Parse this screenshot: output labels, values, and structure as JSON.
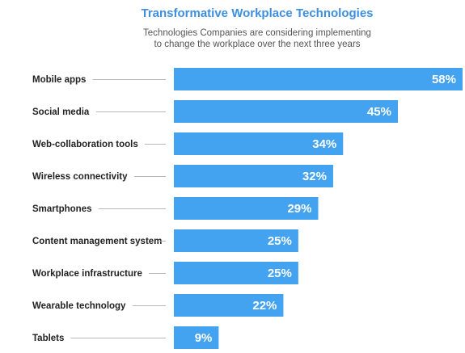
{
  "colors": {
    "bar": "#44a3f1",
    "title": "#3e8fe0",
    "value_text": "#ffffff",
    "label_text": "#222222",
    "leader": "#b8b8b8"
  },
  "chart_data": {
    "type": "bar",
    "orientation": "horizontal",
    "title": "Transformative Workplace Technologies",
    "subtitle": [
      "Technologies Companies are considering implementing",
      "to change the workplace over the next three years"
    ],
    "categories": [
      "Mobile apps",
      "Social media",
      "Web-collaboration tools",
      "Wireless connectivity",
      "Smartphones",
      "Content management system",
      "Workplace infrastructure",
      "Wearable technology",
      "Tablets"
    ],
    "values": [
      58,
      45,
      34,
      32,
      29,
      25,
      25,
      22,
      9
    ],
    "value_labels": [
      "58%",
      "45%",
      "34%",
      "32%",
      "29%",
      "25%",
      "25%",
      "22%",
      "9%"
    ],
    "unit": "%",
    "xlim": [
      0,
      58
    ],
    "grid": false,
    "legend": "none"
  }
}
